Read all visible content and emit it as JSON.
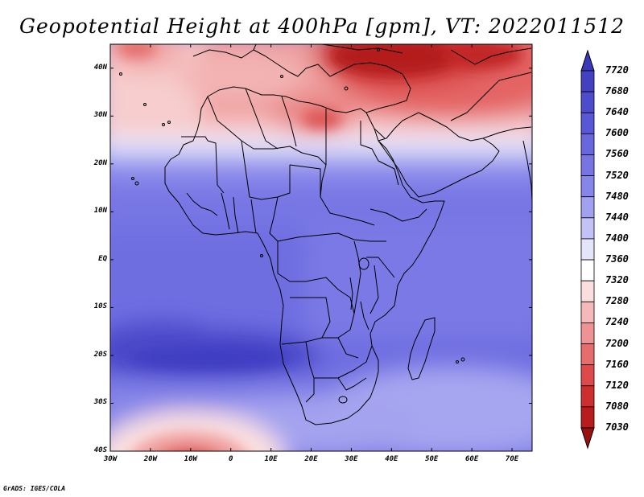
{
  "title": "Geopotential Height at 400hPa [gpm], VT: 2022011512",
  "credit": "GrADS: IGES/COLA",
  "chart_data": {
    "type": "heatmap",
    "variable": "Geopotential Height at 400hPa",
    "units": "gpm",
    "valid_time": "2022011512",
    "lon_range": [
      -30,
      75
    ],
    "lat_range": [
      -40,
      45
    ],
    "x_ticks": [
      {
        "value": -30,
        "label": "30W"
      },
      {
        "value": -20,
        "label": "20W"
      },
      {
        "value": -10,
        "label": "10W"
      },
      {
        "value": 0,
        "label": "0"
      },
      {
        "value": 10,
        "label": "10E"
      },
      {
        "value": 20,
        "label": "20E"
      },
      {
        "value": 30,
        "label": "30E"
      },
      {
        "value": 40,
        "label": "40E"
      },
      {
        "value": 50,
        "label": "50E"
      },
      {
        "value": 60,
        "label": "60E"
      },
      {
        "value": 70,
        "label": "70E"
      }
    ],
    "y_ticks": [
      {
        "value": 40,
        "label": "40N"
      },
      {
        "value": 30,
        "label": "30N"
      },
      {
        "value": 20,
        "label": "20N"
      },
      {
        "value": 10,
        "label": "10N"
      },
      {
        "value": 0,
        "label": "EQ"
      },
      {
        "value": -10,
        "label": "10S"
      },
      {
        "value": -20,
        "label": "20S"
      },
      {
        "value": -30,
        "label": "30S"
      },
      {
        "value": -40,
        "label": "40S"
      }
    ],
    "colorbar": {
      "levels": [
        7720,
        7680,
        7640,
        7600,
        7560,
        7520,
        7480,
        7440,
        7400,
        7360,
        7320,
        7280,
        7240,
        7200,
        7160,
        7120,
        7080,
        7030
      ],
      "colors": [
        "#3a37b8",
        "#4341c2",
        "#4d4ccc",
        "#5857d6",
        "#6867de",
        "#7675e3",
        "#8685e9",
        "#a2a1f0",
        "#c2c2f6",
        "#e4e4fb",
        "#ffffff",
        "#fbdede",
        "#f5b9b9",
        "#ee9393",
        "#e76d6d",
        "#de4a4a",
        "#cf2e2e",
        "#b81c1c",
        "#9a1010"
      ]
    },
    "field_description": "Low heights (red) over North Africa/Middle East in the north and around 35-40S 10W; high heights (blue) across tropics, strongest near 15-20S in the Atlantic"
  }
}
